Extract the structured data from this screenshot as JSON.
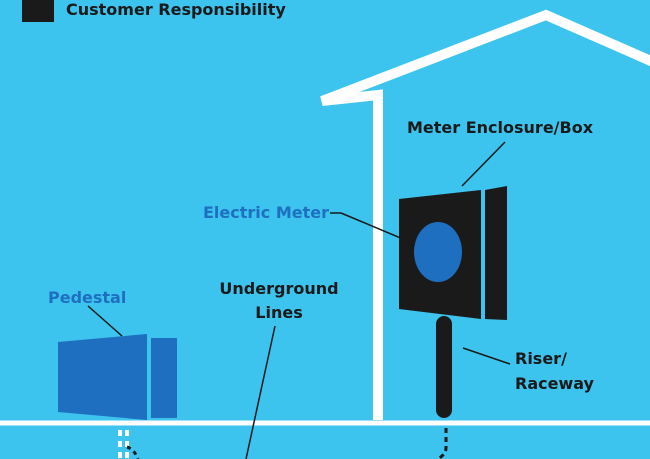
{
  "legend": {
    "label": "Customer Responsibility",
    "swatch_color": "#1a1a1a"
  },
  "labels": {
    "meter_enclosure": "Meter Enclosure/Box",
    "electric_meter": "Electric Meter",
    "pedestal": "Pedestal",
    "underground_line_1": "Underground",
    "underground_line_2": "Lines",
    "riser_line_1": "Riser/",
    "riser_line_2": "Raceway"
  },
  "colors": {
    "background": "#3cc3ee",
    "house_outline": "#ffffff",
    "customer_equipment": "#1a1a1a",
    "utility_equipment": "#1f6fc0"
  }
}
